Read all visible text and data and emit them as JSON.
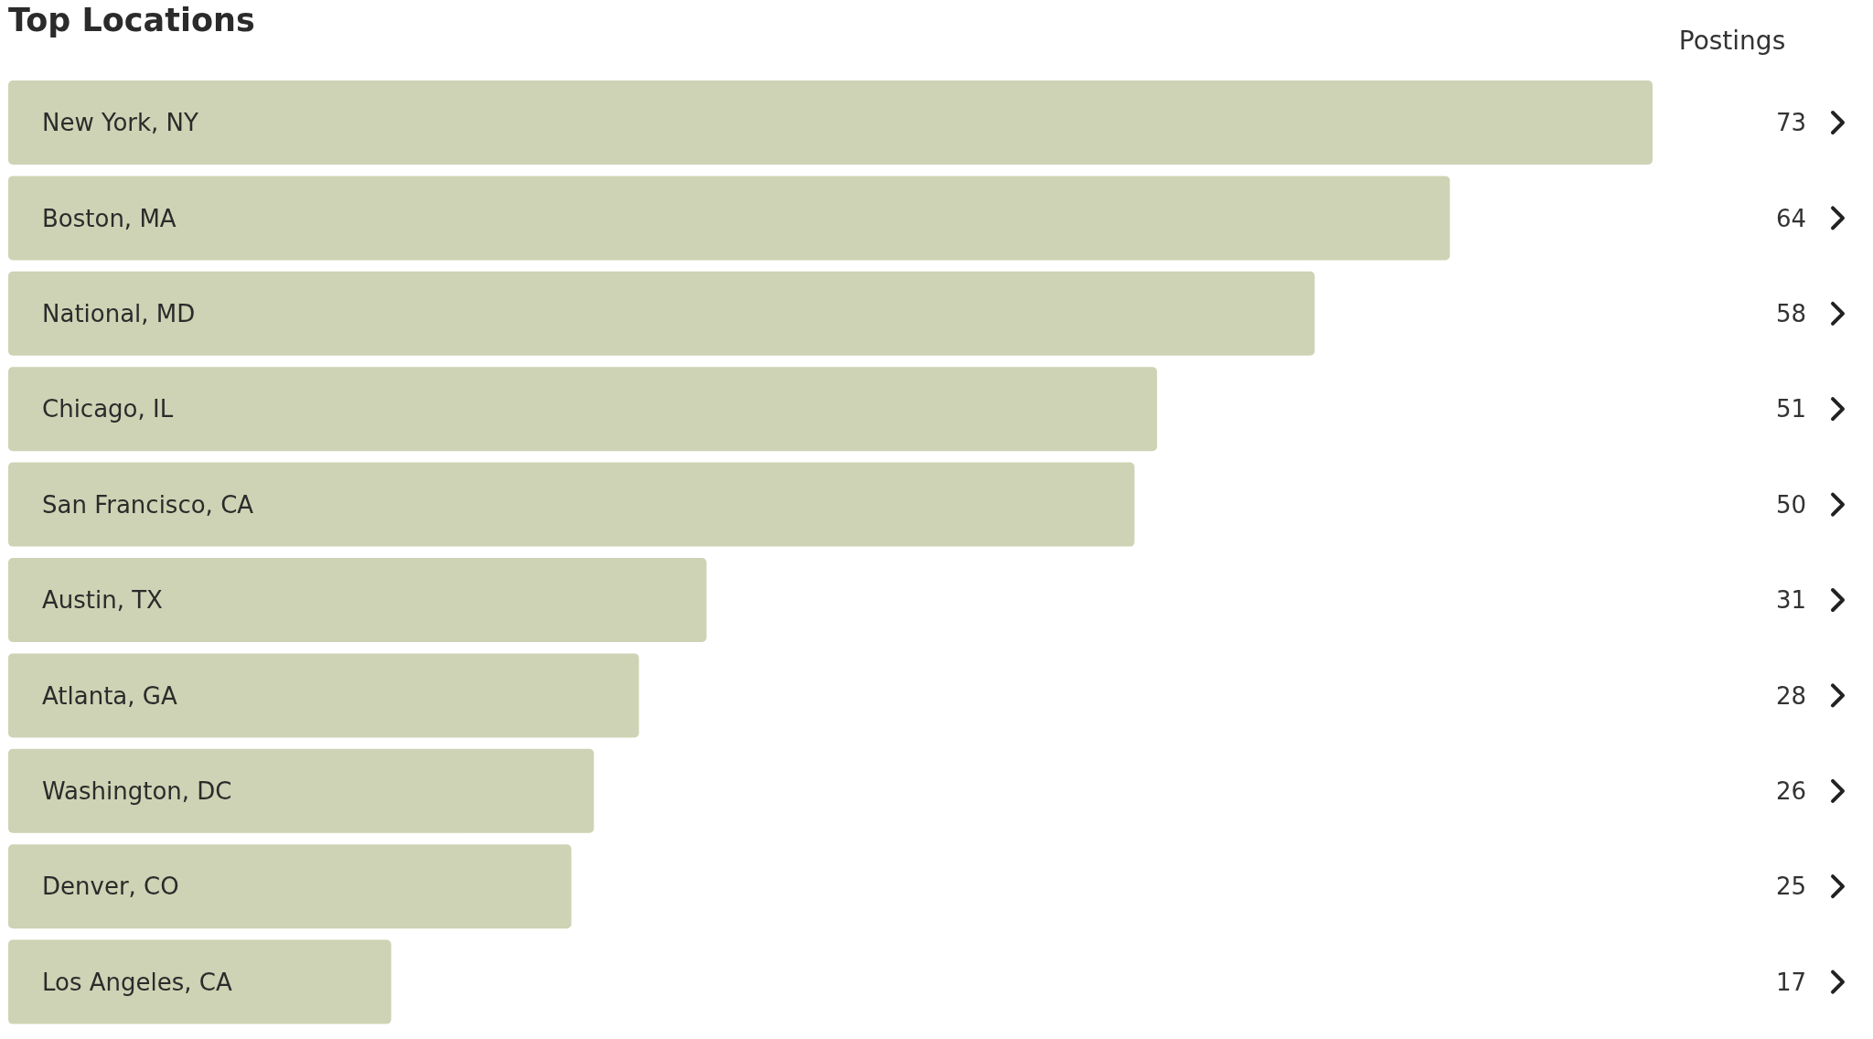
{
  "chart_data": {
    "type": "bar",
    "orientation": "horizontal",
    "title": "Top Locations",
    "xlabel": "Postings",
    "categories": [
      "New York, NY",
      "Boston, MA",
      "National, MD",
      "Chicago, IL",
      "San Francisco, CA",
      "Austin, TX",
      "Atlanta, GA",
      "Washington, DC",
      "Denver, CO",
      "Los Angeles, CA"
    ],
    "values": [
      73,
      64,
      58,
      51,
      50,
      31,
      28,
      26,
      25,
      17
    ],
    "color": "#cdd3b4",
    "data_labels": true
  }
}
